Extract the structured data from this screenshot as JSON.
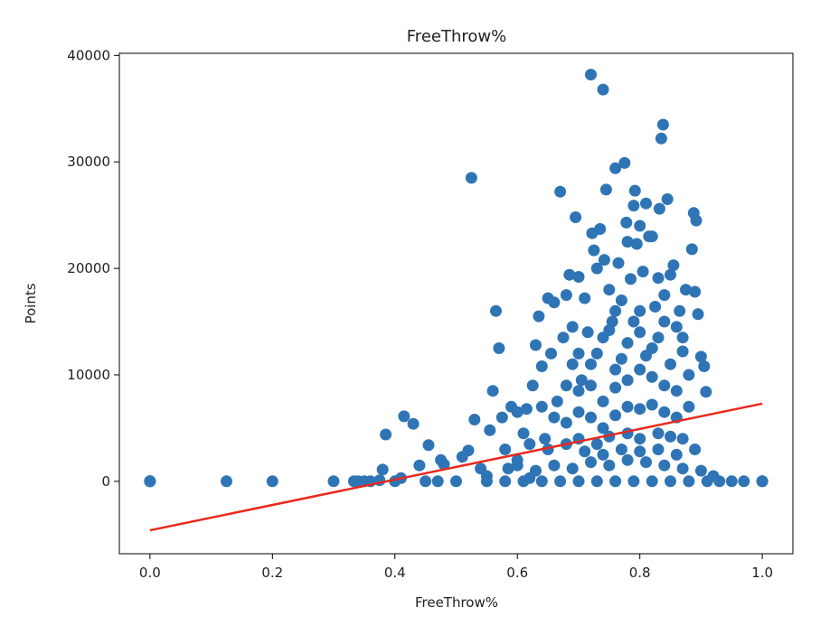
{
  "chart_data": {
    "type": "scatter",
    "title": "FreeThrow%",
    "xlabel": "FreeThrow%",
    "ylabel": "Points",
    "xlim": [
      -0.05,
      1.05
    ],
    "ylim": [
      -6800,
      40200
    ],
    "xticks": [
      0.0,
      0.2,
      0.4,
      0.6,
      0.8,
      1.0
    ],
    "xtick_labels": [
      "0.0",
      "0.2",
      "0.4",
      "0.6",
      "0.8",
      "1.0"
    ],
    "yticks": [
      0,
      10000,
      20000,
      30000,
      40000
    ],
    "ytick_labels": [
      "0",
      "10000",
      "20000",
      "30000",
      "40000"
    ],
    "grid": false,
    "series": [
      {
        "kind": "scatter",
        "color": "#2f75b5",
        "points": [
          [
            0.0,
            0
          ],
          [
            0.0,
            0
          ],
          [
            0.0,
            0
          ],
          [
            0.0,
            0
          ],
          [
            0.125,
            0
          ],
          [
            0.2,
            0
          ],
          [
            0.3,
            0
          ],
          [
            0.333,
            0
          ],
          [
            0.34,
            0
          ],
          [
            0.35,
            0
          ],
          [
            0.36,
            0
          ],
          [
            0.375,
            100
          ],
          [
            0.38,
            1100
          ],
          [
            0.385,
            4400
          ],
          [
            0.4,
            0
          ],
          [
            0.41,
            300
          ],
          [
            0.415,
            6100
          ],
          [
            0.43,
            5400
          ],
          [
            0.44,
            1500
          ],
          [
            0.455,
            3400
          ],
          [
            0.45,
            0
          ],
          [
            0.47,
            0
          ],
          [
            0.475,
            2000
          ],
          [
            0.48,
            1600
          ],
          [
            0.5,
            0
          ],
          [
            0.51,
            2300
          ],
          [
            0.52,
            2900
          ],
          [
            0.525,
            28500
          ],
          [
            0.53,
            5800
          ],
          [
            0.54,
            1200
          ],
          [
            0.55,
            500
          ],
          [
            0.555,
            4800
          ],
          [
            0.56,
            8500
          ],
          [
            0.565,
            16000
          ],
          [
            0.57,
            12500
          ],
          [
            0.575,
            6000
          ],
          [
            0.58,
            3000
          ],
          [
            0.585,
            1200
          ],
          [
            0.59,
            7000
          ],
          [
            0.6,
            6500
          ],
          [
            0.6,
            2000
          ],
          [
            0.61,
            4500
          ],
          [
            0.615,
            6800
          ],
          [
            0.62,
            300
          ],
          [
            0.625,
            9000
          ],
          [
            0.63,
            12800
          ],
          [
            0.635,
            15500
          ],
          [
            0.64,
            10800
          ],
          [
            0.645,
            4000
          ],
          [
            0.65,
            17200
          ],
          [
            0.655,
            12000
          ],
          [
            0.66,
            16800
          ],
          [
            0.665,
            7500
          ],
          [
            0.67,
            27200
          ],
          [
            0.675,
            13500
          ],
          [
            0.68,
            17500
          ],
          [
            0.685,
            19400
          ],
          [
            0.69,
            14500
          ],
          [
            0.695,
            24800
          ],
          [
            0.7,
            19200
          ],
          [
            0.705,
            9500
          ],
          [
            0.71,
            17200
          ],
          [
            0.715,
            14000
          ],
          [
            0.72,
            38200
          ],
          [
            0.722,
            23300
          ],
          [
            0.725,
            21700
          ],
          [
            0.73,
            20000
          ],
          [
            0.735,
            23700
          ],
          [
            0.74,
            36800
          ],
          [
            0.742,
            20800
          ],
          [
            0.745,
            27400
          ],
          [
            0.75,
            18000
          ],
          [
            0.755,
            15000
          ],
          [
            0.76,
            29400
          ],
          [
            0.765,
            20500
          ],
          [
            0.77,
            17000
          ],
          [
            0.775,
            29900
          ],
          [
            0.778,
            24300
          ],
          [
            0.78,
            22500
          ],
          [
            0.785,
            19000
          ],
          [
            0.79,
            25900
          ],
          [
            0.792,
            27300
          ],
          [
            0.795,
            22300
          ],
          [
            0.8,
            24000
          ],
          [
            0.805,
            19700
          ],
          [
            0.81,
            26100
          ],
          [
            0.815,
            23000
          ],
          [
            0.82,
            23000
          ],
          [
            0.825,
            16400
          ],
          [
            0.83,
            19100
          ],
          [
            0.832,
            25600
          ],
          [
            0.835,
            32200
          ],
          [
            0.838,
            33500
          ],
          [
            0.84,
            17500
          ],
          [
            0.845,
            26500
          ],
          [
            0.85,
            19400
          ],
          [
            0.855,
            20300
          ],
          [
            0.86,
            14500
          ],
          [
            0.865,
            16000
          ],
          [
            0.87,
            12200
          ],
          [
            0.875,
            18000
          ],
          [
            0.88,
            10000
          ],
          [
            0.885,
            21800
          ],
          [
            0.888,
            25200
          ],
          [
            0.89,
            17800
          ],
          [
            0.892,
            24500
          ],
          [
            0.895,
            15700
          ],
          [
            0.9,
            11700
          ],
          [
            0.905,
            10800
          ],
          [
            0.908,
            8400
          ],
          [
            0.7,
            12000
          ],
          [
            0.72,
            11000
          ],
          [
            0.74,
            13500
          ],
          [
            0.76,
            10500
          ],
          [
            0.78,
            13000
          ],
          [
            0.8,
            14000
          ],
          [
            0.82,
            12500
          ],
          [
            0.76,
            16000
          ],
          [
            0.8,
            16000
          ],
          [
            0.84,
            15000
          ],
          [
            0.68,
            9000
          ],
          [
            0.7,
            8500
          ],
          [
            0.72,
            9000
          ],
          [
            0.74,
            7500
          ],
          [
            0.76,
            8800
          ],
          [
            0.78,
            9500
          ],
          [
            0.8,
            10500
          ],
          [
            0.82,
            9800
          ],
          [
            0.84,
            9000
          ],
          [
            0.86,
            8500
          ],
          [
            0.64,
            7000
          ],
          [
            0.66,
            6000
          ],
          [
            0.68,
            5500
          ],
          [
            0.7,
            6500
          ],
          [
            0.72,
            6000
          ],
          [
            0.74,
            5000
          ],
          [
            0.76,
            6200
          ],
          [
            0.78,
            7000
          ],
          [
            0.8,
            6800
          ],
          [
            0.82,
            7200
          ],
          [
            0.84,
            6500
          ],
          [
            0.86,
            6000
          ],
          [
            0.88,
            7000
          ],
          [
            0.62,
            3500
          ],
          [
            0.65,
            3000
          ],
          [
            0.68,
            3500
          ],
          [
            0.7,
            4000
          ],
          [
            0.73,
            3500
          ],
          [
            0.75,
            4200
          ],
          [
            0.78,
            4500
          ],
          [
            0.8,
            4000
          ],
          [
            0.83,
            4500
          ],
          [
            0.85,
            4200
          ],
          [
            0.87,
            4000
          ],
          [
            0.89,
            3000
          ],
          [
            0.6,
            1500
          ],
          [
            0.63,
            1000
          ],
          [
            0.66,
            1500
          ],
          [
            0.69,
            1200
          ],
          [
            0.72,
            1800
          ],
          [
            0.75,
            1500
          ],
          [
            0.78,
            2000
          ],
          [
            0.81,
            1800
          ],
          [
            0.84,
            1500
          ],
          [
            0.87,
            1200
          ],
          [
            0.9,
            1000
          ],
          [
            0.92,
            500
          ],
          [
            0.55,
            0
          ],
          [
            0.58,
            0
          ],
          [
            0.61,
            0
          ],
          [
            0.64,
            0
          ],
          [
            0.67,
            0
          ],
          [
            0.7,
            0
          ],
          [
            0.73,
            0
          ],
          [
            0.76,
            0
          ],
          [
            0.79,
            0
          ],
          [
            0.82,
            0
          ],
          [
            0.85,
            0
          ],
          [
            0.88,
            0
          ],
          [
            0.91,
            0
          ],
          [
            0.93,
            0
          ],
          [
            0.95,
            0
          ],
          [
            0.97,
            0
          ],
          [
            1.0,
            0
          ],
          [
            1.0,
            0
          ],
          [
            0.71,
            2800
          ],
          [
            0.74,
            2500
          ],
          [
            0.77,
            3000
          ],
          [
            0.8,
            2800
          ],
          [
            0.83,
            3000
          ],
          [
            0.86,
            2500
          ],
          [
            0.69,
            11000
          ],
          [
            0.73,
            12000
          ],
          [
            0.77,
            11500
          ],
          [
            0.81,
            11800
          ],
          [
            0.85,
            11000
          ],
          [
            0.87,
            13500
          ],
          [
            0.83,
            13500
          ],
          [
            0.79,
            15000
          ],
          [
            0.75,
            14200
          ]
        ]
      },
      {
        "kind": "line",
        "color": "#e8291c",
        "points": [
          [
            0.0,
            -4600
          ],
          [
            1.0,
            7300
          ]
        ]
      }
    ]
  }
}
